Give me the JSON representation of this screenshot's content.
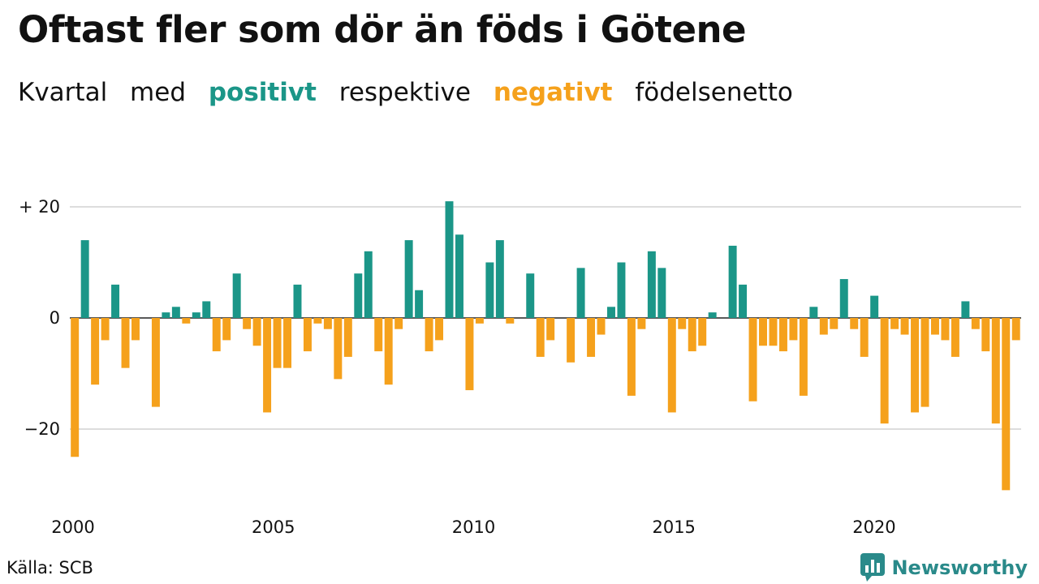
{
  "header": {
    "title": "Oftast fler som dör än föds i Götene",
    "subtitle": {
      "part1": "Kvartal",
      "part2": "med",
      "positive": "positivt",
      "part3": "respektive",
      "negative": "negativt",
      "part4": "födelsenetto"
    }
  },
  "footer": {
    "source": "Källa: SCB",
    "brand": "Newsworthy",
    "brand_icon": "bar-chart-logo-icon"
  },
  "colors": {
    "positive": "#1b9688",
    "negative": "#f5a11c",
    "grid": "#dddddd",
    "brand": "#2a8a8a"
  },
  "chart_data": {
    "type": "bar",
    "title": "Oftast fler som dör än föds i Götene",
    "xlabel": "",
    "ylabel": "",
    "ylim": [
      -32,
      23
    ],
    "xlim": [
      2000.0,
      2023.75
    ],
    "y_ticks": [
      {
        "value": 20,
        "label": "+ 20"
      },
      {
        "value": 0,
        "label": "0"
      },
      {
        "value": -20,
        "label": "−20"
      }
    ],
    "x_ticks": [
      {
        "value": 2000,
        "label": "2000"
      },
      {
        "value": 2005,
        "label": "2005"
      },
      {
        "value": 2010,
        "label": "2010"
      },
      {
        "value": 2015,
        "label": "2015"
      },
      {
        "value": 2020,
        "label": "2020"
      }
    ],
    "start_year": 2000,
    "periods_per_year": 4,
    "values": [
      -25,
      14,
      -12,
      -4,
      6,
      -9,
      -4,
      0,
      -16,
      1,
      2,
      -1,
      1,
      3,
      -6,
      -4,
      8,
      -2,
      -5,
      -17,
      -9,
      -9,
      6,
      -6,
      -1,
      -2,
      -11,
      -7,
      8,
      12,
      -6,
      -12,
      -2,
      14,
      5,
      -6,
      -4,
      21,
      15,
      -13,
      -1,
      10,
      14,
      -1,
      0,
      8,
      -7,
      -4,
      0,
      -8,
      9,
      -7,
      -3,
      2,
      10,
      -14,
      -2,
      12,
      9,
      -17,
      -2,
      -6,
      -5,
      1,
      0,
      13,
      6,
      -15,
      -5,
      -5,
      -6,
      -4,
      -14,
      2,
      -3,
      -2,
      7,
      -2,
      -7,
      4,
      -19,
      -2,
      -3,
      -17,
      -16,
      -3,
      -4,
      -7,
      3,
      -2,
      -6,
      -19,
      -31,
      -4
    ],
    "grid": true,
    "legend": "none"
  }
}
